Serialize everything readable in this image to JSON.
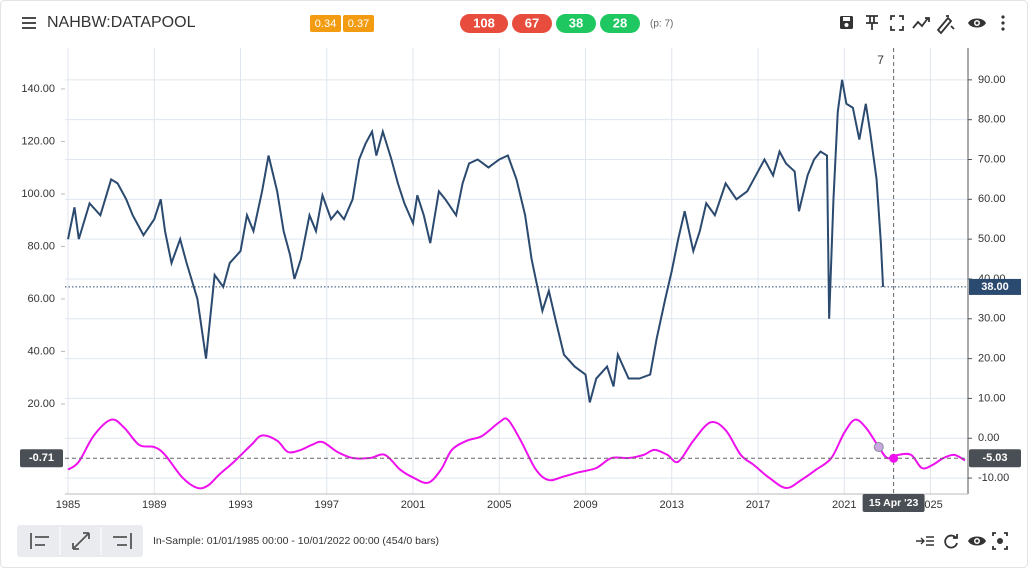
{
  "header": {
    "title": "NAHBW:DATAPOOL",
    "badges": [
      {
        "text": 0.34,
        "color": "#f39c12"
      },
      {
        "text": 0.37,
        "color": "#f39c12"
      }
    ],
    "pills": [
      {
        "text": 108,
        "color": "#e74c3c"
      },
      {
        "text": 67,
        "color": "#e74c3c"
      },
      {
        "text": 38,
        "color": "#1ec760"
      },
      {
        "text": 28,
        "color": "#1ec760"
      }
    ],
    "period": "(p: 7)"
  },
  "footer": {
    "in_sample": "In-Sample: 01/01/1985 00:00 - 10/01/2022 00:00 (454/0 bars)"
  },
  "chart_data": {
    "type": "line",
    "xlim": [
      1984.86,
      2026.74
    ],
    "xticks": [
      1985,
      1989,
      1993,
      1997,
      2001,
      2005,
      2009,
      2013,
      2017,
      2021,
      2025
    ],
    "ylim": [
      -14.3,
      155.6
    ],
    "yticks": [
      {
        "value": 20,
        "label": "20.00"
      },
      {
        "value": 40,
        "label": "40.00"
      },
      {
        "value": 60,
        "label": "60.00"
      },
      {
        "value": 80,
        "label": "80.00"
      },
      {
        "value": 100,
        "label": "100.00"
      },
      {
        "value": 120,
        "label": "120.00"
      },
      {
        "value": 140,
        "label": "140.00"
      }
    ],
    "y2lim": [
      -14,
      98
    ],
    "y2ticks": [
      {
        "value": -10,
        "label": "-10.00"
      },
      {
        "value": 0,
        "label": "0.00"
      },
      {
        "value": 10,
        "label": "10.00"
      },
      {
        "value": 20,
        "label": "20.00"
      },
      {
        "value": 30,
        "label": "30.00"
      },
      {
        "value": 40,
        "label": "40.00"
      },
      {
        "value": 50,
        "label": "50.00"
      },
      {
        "value": 60,
        "label": "60.00"
      },
      {
        "value": 70,
        "label": "70.00"
      },
      {
        "value": 80,
        "label": "80.00"
      },
      {
        "value": 90,
        "label": "90.00"
      }
    ],
    "grid": true,
    "series": [
      {
        "color": "#2b4a6f",
        "axis": "y2",
        "x": [
          1985.0,
          1985.3,
          1985.5,
          1986.0,
          1986.5,
          1987.0,
          1987.3,
          1987.7,
          1988.0,
          1988.5,
          1989.0,
          1989.3,
          1989.5,
          1989.8,
          1990.2,
          1990.5,
          1991.0,
          1991.4,
          1991.8,
          1992.2,
          1992.5,
          1993.0,
          1993.3,
          1993.6,
          1994.0,
          1994.3,
          1994.7,
          1995.0,
          1995.3,
          1995.5,
          1995.8,
          1996.2,
          1996.5,
          1996.8,
          1997.2,
          1997.5,
          1997.8,
          1998.2,
          1998.5,
          1998.8,
          1999.1,
          1999.3,
          1999.6,
          2000.0,
          2000.3,
          2000.6,
          2001.0,
          2001.2,
          2001.5,
          2001.8,
          2002.2,
          2002.5,
          2003.0,
          2003.3,
          2003.6,
          2004.0,
          2004.5,
          2005.0,
          2005.4,
          2005.8,
          2006.2,
          2006.5,
          2007.0,
          2007.3,
          2007.6,
          2008.0,
          2008.5,
          2009.0,
          2009.2,
          2009.5,
          2010.0,
          2010.3,
          2010.5,
          2011.0,
          2011.5,
          2012.0,
          2012.3,
          2012.7,
          2013.0,
          2013.3,
          2013.6,
          2014.0,
          2014.3,
          2014.6,
          2015.0,
          2015.5,
          2016.0,
          2016.5,
          2017.0,
          2017.3,
          2017.7,
          2018.0,
          2018.3,
          2018.7,
          2018.9,
          2019.3,
          2019.6,
          2019.9,
          2020.2,
          2020.3,
          2020.5,
          2020.7,
          2020.9,
          2021.1,
          2021.4,
          2021.7,
          2022.0,
          2022.2,
          2022.5,
          2022.7,
          2022.8
        ],
        "values": [
          50,
          58,
          50,
          59,
          56,
          65,
          64,
          60,
          56,
          51,
          55,
          60,
          52,
          44,
          50,
          44,
          35,
          20,
          41,
          38,
          44,
          47,
          56,
          52,
          62,
          71,
          62,
          52,
          46,
          40,
          45,
          56,
          52,
          61,
          55,
          57,
          55,
          60,
          70,
          74,
          77,
          71,
          77,
          70,
          64,
          59,
          54,
          61,
          56,
          49,
          62,
          60,
          56,
          64,
          69,
          70,
          68,
          70,
          71,
          65,
          56,
          45,
          32,
          37,
          30,
          21,
          18,
          16,
          9,
          15,
          18,
          13,
          21,
          15,
          15,
          16,
          25,
          35,
          42,
          50,
          57,
          47,
          52,
          59,
          56,
          64,
          60,
          62,
          67,
          70,
          66,
          72,
          69,
          67,
          57,
          66,
          70,
          72,
          71,
          30,
          60,
          82,
          90,
          84,
          83,
          75,
          84,
          77,
          65,
          49,
          38
        ]
      },
      {
        "color": "#ee11ee",
        "axis": "y",
        "x": [
          1985.0,
          1985.5,
          1986.2,
          1987.0,
          1987.6,
          1988.3,
          1989.0,
          1989.5,
          1990.3,
          1991.0,
          1991.5,
          1992.0,
          1992.7,
          1993.5,
          1994.0,
          1994.7,
          1995.2,
          1995.8,
          1996.3,
          1996.8,
          1997.5,
          1998.2,
          1999.0,
          1999.7,
          2000.4,
          2001.0,
          2001.7,
          2002.3,
          2002.8,
          2003.5,
          2004.2,
          2005.0,
          2005.4,
          2006.0,
          2006.7,
          2007.3,
          2008.0,
          2008.7,
          2009.5,
          2010.2,
          2011.0,
          2011.7,
          2012.2,
          2012.8,
          2013.3,
          2014.0,
          2014.8,
          2015.5,
          2016.2,
          2016.8,
          2017.5,
          2018.3,
          2019.0,
          2019.7,
          2020.4,
          2021.0,
          2021.5,
          2022.0,
          2022.6,
          2023.0,
          2023.5,
          2024.1,
          2024.6,
          2025.1,
          2025.6,
          2026.1,
          2026.6
        ],
        "values": [
          -5,
          -2,
          8,
          14,
          11,
          4.4,
          3.6,
          0.6,
          -8,
          -12,
          -11,
          -7,
          -2,
          4.4,
          8,
          6,
          1.7,
          2.5,
          4.4,
          5.5,
          1.7,
          -0.6,
          -0.6,
          0.6,
          -5,
          -8,
          -10,
          -5,
          2.5,
          6,
          7.8,
          13,
          14,
          6,
          -5,
          -9,
          -7.6,
          -6,
          -4.4,
          -0.6,
          -0.6,
          0.6,
          2.5,
          0.6,
          -2,
          6,
          13,
          10,
          0.6,
          -3.2,
          -8,
          -12,
          -9,
          -5,
          -0.6,
          9,
          14,
          11,
          3.6,
          -0.6,
          0.6,
          0.6,
          -4.4,
          -3.2,
          -0.6,
          0.6,
          -1.5
        ]
      }
    ],
    "last_value": {
      "value": 38,
      "label": "38.00"
    },
    "crosshair": {
      "x": 2023.29,
      "x_label": "15 Apr '23",
      "y": -0.71,
      "y2": -5.03,
      "top_label": 7
    }
  }
}
